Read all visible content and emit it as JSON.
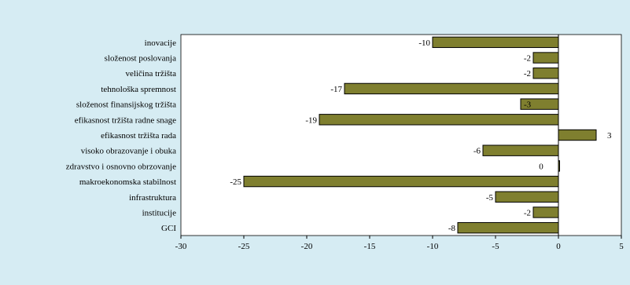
{
  "chart_data": {
    "type": "bar",
    "orientation": "horizontal",
    "categories": [
      "inovacije",
      "složenost poslovanja",
      "veličina tržišta",
      "tehnološka spremnost",
      "složenost finansijskog tržišta",
      "efikasnost tržišta radne snage",
      "efikasnost tržišta rada",
      "visoko obrazovanje i obuka",
      "zdravstvo i osnovno obrzovanje",
      "makroekonomska stabilnost",
      "infrastruktura",
      "institucije",
      "GCI"
    ],
    "values": [
      -10,
      -2,
      -2,
      -17,
      -3,
      -19,
      3,
      -6,
      0,
      -25,
      -5,
      -2,
      -8
    ],
    "value_labels": [
      "-10",
      "-2",
      "-2",
      "-17",
      "-3",
      "-19",
      "3",
      "-6",
      "0",
      "-25",
      "-5",
      "-2",
      "-8"
    ],
    "xlim": [
      -30,
      5
    ],
    "x_ticks": [
      "-30",
      "-25",
      "-20",
      "-15",
      "-10",
      "-5",
      "0",
      "5"
    ],
    "x_tick_values": [
      -30,
      -25,
      -20,
      -15,
      -10,
      -5,
      0,
      5
    ],
    "title": "",
    "xlabel": "",
    "ylabel": "",
    "grid": false,
    "legend": "none",
    "colors": {
      "bar_fill": "#7f7f2f",
      "bar_stroke": "#000000",
      "plot_bg": "#ffffff",
      "page_bg": "#d6ecf3"
    }
  }
}
